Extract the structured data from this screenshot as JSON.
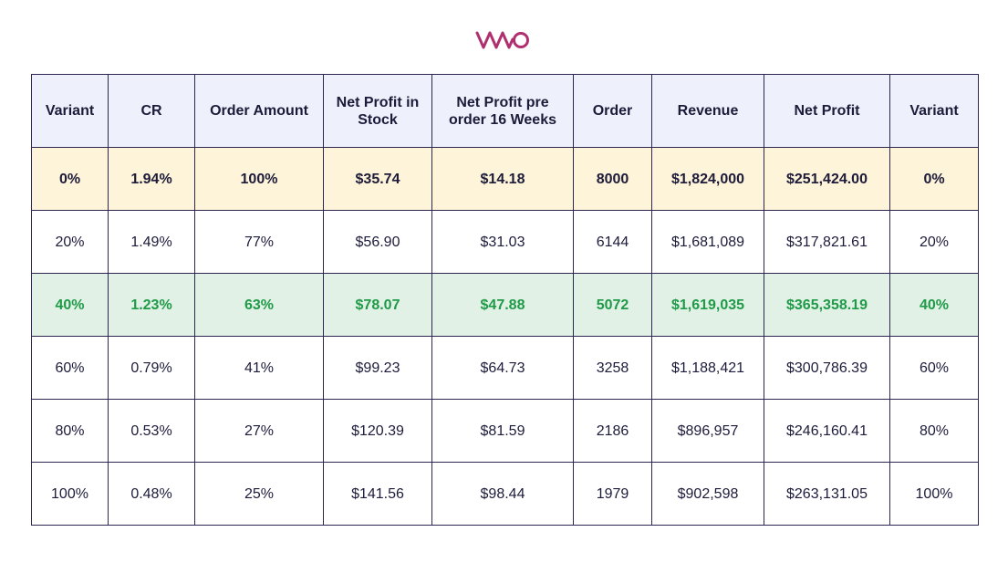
{
  "brand": {
    "logo_text": "VWO",
    "color": "#b0306f"
  },
  "colors": {
    "header_bg": "#eef1fb",
    "baseline_bg": "#fdf4d9",
    "highlight_bg": "#e1f1e5",
    "highlight_text": "#1f9a48",
    "border": "#2c2650"
  },
  "chart_data": {
    "type": "table",
    "columns": [
      "Variant",
      "CR",
      "Order Amount",
      "Net Profit in Stock",
      "Net Profit pre order 16 Weeks",
      "Order",
      "Revenue",
      "Net Profit",
      "Variant"
    ],
    "rows": [
      [
        "0%",
        "1.94%",
        "100%",
        "$35.74",
        "$14.18",
        "8000",
        "$1,824,000",
        "$251,424.00",
        "0%"
      ],
      [
        "20%",
        "1.49%",
        "77%",
        "$56.90",
        "$31.03",
        "6144",
        "$1,681,089",
        "$317,821.61",
        "20%"
      ],
      [
        "40%",
        "1.23%",
        "63%",
        "$78.07",
        "$47.88",
        "5072",
        "$1,619,035",
        "$365,358.19",
        "40%"
      ],
      [
        "60%",
        "0.79%",
        "41%",
        "$99.23",
        "$64.73",
        "3258",
        "$1,188,421",
        "$300,786.39",
        "60%"
      ],
      [
        "80%",
        "0.53%",
        "27%",
        "$120.39",
        "$81.59",
        "2186",
        "$896,957",
        "$246,160.41",
        "80%"
      ],
      [
        "100%",
        "0.48%",
        "25%",
        "$141.56",
        "$98.44",
        "1979",
        "$902,598",
        "$263,131.05",
        "100%"
      ]
    ],
    "row_styles": [
      "baseline",
      "normal",
      "highlight",
      "normal",
      "normal",
      "normal"
    ]
  }
}
